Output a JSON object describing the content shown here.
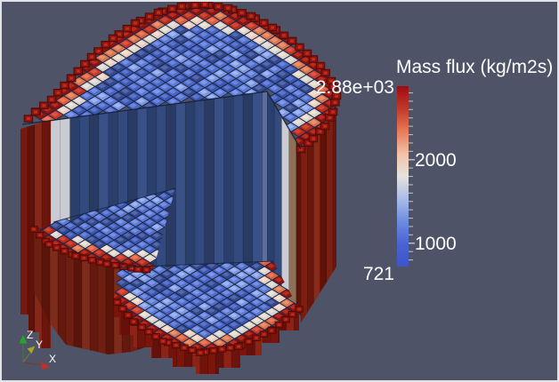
{
  "scene": {
    "background": "#4e5367",
    "frame": "#e2e3e7",
    "description": "3D cut-away block model of a cylindrical core colored by mass flux"
  },
  "colorbar": {
    "title": "Mass flux (kg/m2s)",
    "max_label": "2.88e+03",
    "min_label": "721",
    "tick_labels": [
      "2000",
      "1000"
    ],
    "min": 721,
    "max": 2880,
    "ticks": [
      1000,
      2000
    ],
    "colormap": [
      "#9e0b12",
      "#c0392b",
      "#e77a58",
      "#f2c2a8",
      "#e6e2dd",
      "#a9bce8",
      "#6d8ce0",
      "#4a63d2",
      "#3c55c8"
    ]
  },
  "axes_widget": {
    "x_label": "X",
    "y_label": "Y",
    "z_label": "Z",
    "x_color": "#c23024",
    "y_color": "#a8a81e",
    "z_color": "#28a428"
  },
  "palette": {
    "cell_stroke": "#18264c",
    "blues": [
      "#4a66c0",
      "#5f7bd0",
      "#3d57ae",
      "#7e97dd",
      "#35498f",
      "#5570c8"
    ],
    "ring_pale": [
      "#ddd5c8",
      "#e7cfc0",
      "#d8d2cc"
    ],
    "ring_red": [
      "#c53a28",
      "#d95f3e",
      "#b92c1c",
      "#d4764f"
    ],
    "rim_cube": {
      "fill": "#8f130d",
      "stroke": "#4e0a05",
      "inner": "#c03322"
    },
    "wall_blues": [
      "#2b3f6d",
      "#334a7e",
      "#293a63",
      "#3a5187"
    ],
    "wall_pale": "#c9ccd2",
    "wall_tan": "#8f7057",
    "wall_corner": "#5b6d9c",
    "wall_darkred": "#5f120a",
    "shell_reds": [
      "#76190e",
      "#5f120a",
      "#86271a",
      "#6b150c"
    ],
    "shell_reds_bright": [
      "#7c1f12",
      "#69160c",
      "#8a2a18",
      "#601108"
    ],
    "face_reds": [
      "#6e1f12",
      "#5a150b",
      "#7d2b1a",
      "#65190e"
    ],
    "face_tan": "#8a6a50",
    "floor_reds": [
      "#7b150c",
      "#65100a",
      "#8c2315",
      "#70130a"
    ],
    "edge_line": "#141f3a"
  },
  "chart_data": {
    "type": "heatmap",
    "title": "Mass flux (kg/m2s)",
    "description": "3D cut-away (quarter-wedge removed) blocky cylindrical core rendered in a scientific visualization viewport; each block face is a cell colored by mass flux. Core interior cells are blue (low flux), a thin pale/white transition ring surrounds them, and the outermost ring of blocks is red (high flux). The cut exposes dark-blue interior column walls, a mid-height wedge ledge and a lower floor, both with the same blue-center/red-rim pattern.",
    "colorbar": {
      "label": "Mass flux (kg/m2s)",
      "orientation": "vertical",
      "position": "right",
      "min": 721,
      "max": 2880,
      "min_label": "721",
      "max_label": "2.88e+03",
      "labeled_ticks": [
        1000,
        2000
      ],
      "minor_tick_interval": 100,
      "colormap": "cool-to-warm diverging (blue = low, white = mid, red = high), red at top of bar"
    },
    "regions": [
      {
        "name": "core interior cells",
        "color": "blue",
        "approx_value_range": [
          900,
          1500
        ]
      },
      {
        "name": "transition ring cells",
        "color": "white/pale",
        "approx_value_range": [
          1500,
          2100
        ]
      },
      {
        "name": "outer ring cells",
        "color": "orange/red",
        "approx_value_range": [
          2100,
          2880
        ]
      }
    ],
    "annotations": [
      "2.88e+03 at colorbar top",
      "721 at colorbar bottom"
    ]
  }
}
